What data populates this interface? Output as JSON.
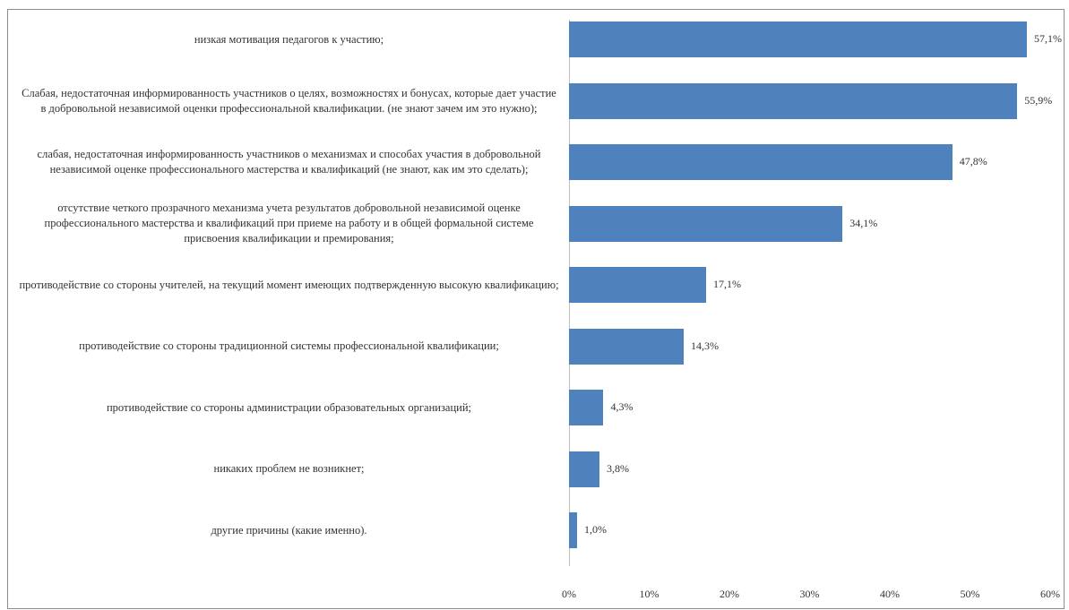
{
  "chart_data": {
    "type": "bar",
    "orientation": "horizontal",
    "categories": [
      "низкая мотивация педагогов к участию;",
      "Слабая, недостаточная информированность участников о целях, возможностях и бонусах, которые дает участие в добровольной независимой оценки профессиональной квалификации. (не знают зачем им это нужно);",
      "слабая, недостаточная информированность участников о механизмах и способах участия в добровольной независимой оценке профессионального мастерства и квалификаций (не знают, как им это сделать);",
      "отсутствие четкого прозрачного механизма учета результатов добровольной независимой оценке профессионального мастерства и квалификаций при приеме на работу и в общей формальной системе присвоения квалификации и премирования;",
      "противодействие со стороны учителей, на текущий момент имеющих подтвержденную высокую квалификацию;",
      "противодействие со стороны традиционной системы профессиональной квалификации;",
      "противодействие со стороны администрации образовательных организаций;",
      "никаких проблем не возникнет;",
      "другие причины (какие именно)."
    ],
    "values": [
      57.1,
      55.9,
      47.8,
      34.1,
      17.1,
      14.3,
      4.3,
      3.8,
      1.0
    ],
    "value_labels": [
      "57,1%",
      "55,9%",
      "47,8%",
      "34,1%",
      "17,1%",
      "14,3%",
      "4,3%",
      "3,8%",
      "1,0%"
    ],
    "xlim": [
      0,
      60
    ],
    "x_ticks": [
      0,
      10,
      20,
      30,
      40,
      50,
      60
    ],
    "x_tick_labels": [
      "0%",
      "10%",
      "20%",
      "30%",
      "40%",
      "50%",
      "60%"
    ],
    "grid": false,
    "legend": "none",
    "bar_color": "#4f81bd"
  }
}
